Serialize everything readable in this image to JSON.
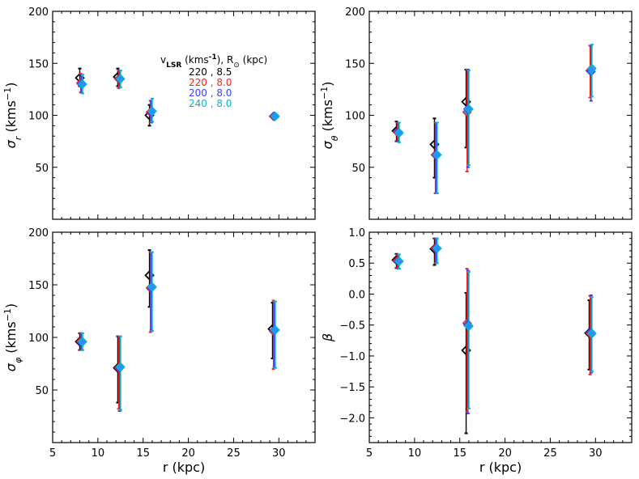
{
  "figure": {
    "legend": {
      "title": "v_LSR (kms^-1), R_sun (kpc)",
      "entries": [
        {
          "text": "220  ,  8.5",
          "color": "#000000"
        },
        {
          "text": "220  ,  8.0",
          "color": "#ff2020"
        },
        {
          "text": "200  ,  8.0",
          "color": "#3b3bff"
        },
        {
          "text": "240  ,  8.0",
          "color": "#00b8c8"
        }
      ]
    },
    "series_colors": {
      "black": "#000000",
      "red": "#ff2020",
      "blue": "#3b3bff",
      "cyan": "#00b8c8",
      "marker_fill": "#2f8fff"
    }
  },
  "chart_data": [
    {
      "type": "scatter",
      "panel": "top-left",
      "ylabel": "σr (kms^-1)",
      "xlabel": "",
      "xlim": [
        5,
        34
      ],
      "ylim": [
        0,
        200
      ],
      "xticks": [
        5,
        10,
        15,
        20,
        25,
        30
      ],
      "yticks": [
        50,
        100,
        150,
        200
      ],
      "show_xtick_labels": false,
      "series": [
        {
          "name": "220, 8.5",
          "color": "#000000",
          "points": [
            {
              "x": 8.0,
              "y": 136,
              "lo": 128,
              "hi": 145
            },
            {
              "x": 12.2,
              "y": 137,
              "lo": 128,
              "hi": 145
            },
            {
              "x": 15.7,
              "y": 100,
              "lo": 90,
              "hi": 110
            }
          ]
        },
        {
          "name": "220, 8.0",
          "color": "#ff2020",
          "points": [
            {
              "x": 8.0,
              "y": 131,
              "lo": 122,
              "hi": 140
            },
            {
              "x": 12.2,
              "y": 135,
              "lo": 126,
              "hi": 143
            },
            {
              "x": 15.7,
              "y": 103,
              "lo": 93,
              "hi": 114
            },
            {
              "x": 29.3,
              "y": 99,
              "lo": 97,
              "hi": 101
            }
          ]
        },
        {
          "name": "200, 8.0",
          "color": "#3b3bff",
          "points": [
            {
              "x": 8.0,
              "y": 130,
              "lo": 122,
              "hi": 139
            },
            {
              "x": 12.2,
              "y": 135,
              "lo": 127,
              "hi": 143
            },
            {
              "x": 15.7,
              "y": 103,
              "lo": 93,
              "hi": 114
            },
            {
              "x": 29.3,
              "y": 99,
              "lo": 97,
              "hi": 101
            }
          ]
        },
        {
          "name": "240, 8.0",
          "color": "#00b8c8",
          "points": [
            {
              "x": 8.0,
              "y": 130,
              "lo": 121,
              "hi": 139
            },
            {
              "x": 12.2,
              "y": 135,
              "lo": 127,
              "hi": 143
            },
            {
              "x": 15.7,
              "y": 104,
              "lo": 94,
              "hi": 116
            },
            {
              "x": 29.3,
              "y": 99,
              "lo": 97,
              "hi": 101
            }
          ]
        }
      ]
    },
    {
      "type": "scatter",
      "panel": "top-right",
      "ylabel": "σθ (kms^-1)",
      "xlabel": "",
      "xlim": [
        5,
        34
      ],
      "ylim": [
        0,
        200
      ],
      "xticks": [
        5,
        10,
        15,
        20,
        25,
        30
      ],
      "yticks": [
        50,
        100,
        150,
        200
      ],
      "show_xtick_labels": false,
      "series": [
        {
          "name": "220, 8.5",
          "color": "#000000",
          "points": [
            {
              "x": 8.0,
              "y": 85,
              "lo": 75,
              "hi": 94
            },
            {
              "x": 12.2,
              "y": 72,
              "lo": 40,
              "hi": 97
            },
            {
              "x": 15.7,
              "y": 113,
              "lo": 69,
              "hi": 144
            }
          ]
        },
        {
          "name": "220, 8.0",
          "color": "#ff2020",
          "points": [
            {
              "x": 8.0,
              "y": 84,
              "lo": 75,
              "hi": 93
            },
            {
              "x": 12.2,
              "y": 62,
              "lo": 25,
              "hi": 93
            },
            {
              "x": 15.7,
              "y": 103,
              "lo": 46,
              "hi": 144
            },
            {
              "x": 29.3,
              "y": 143,
              "lo": 117,
              "hi": 167
            }
          ]
        },
        {
          "name": "200, 8.0",
          "color": "#3b3bff",
          "points": [
            {
              "x": 8.0,
              "y": 84,
              "lo": 75,
              "hi": 93
            },
            {
              "x": 12.2,
              "y": 62,
              "lo": 25,
              "hi": 93
            },
            {
              "x": 15.7,
              "y": 106,
              "lo": 50,
              "hi": 144
            },
            {
              "x": 29.3,
              "y": 142,
              "lo": 114,
              "hi": 167
            }
          ]
        },
        {
          "name": "240, 8.0",
          "color": "#00b8c8",
          "points": [
            {
              "x": 8.0,
              "y": 83,
              "lo": 74,
              "hi": 93
            },
            {
              "x": 12.2,
              "y": 62,
              "lo": 25,
              "hi": 93
            },
            {
              "x": 15.7,
              "y": 106,
              "lo": 52,
              "hi": 143
            },
            {
              "x": 29.3,
              "y": 145,
              "lo": 118,
              "hi": 168
            }
          ]
        }
      ]
    },
    {
      "type": "scatter",
      "panel": "bottom-left",
      "ylabel": "σφ (kms^-1)",
      "xlabel": "r (kpc)",
      "xlim": [
        5,
        34
      ],
      "ylim": [
        0,
        200
      ],
      "xticks": [
        5,
        10,
        15,
        20,
        25,
        30
      ],
      "yticks": [
        50,
        100,
        150,
        200
      ],
      "show_xtick_labels": true,
      "series": [
        {
          "name": "220, 8.5",
          "color": "#000000",
          "points": [
            {
              "x": 8.0,
              "y": 96,
              "lo": 88,
              "hi": 104
            },
            {
              "x": 12.2,
              "y": 71,
              "lo": 38,
              "hi": 101
            },
            {
              "x": 15.7,
              "y": 159,
              "lo": 129,
              "hi": 183
            },
            {
              "x": 29.3,
              "y": 108,
              "lo": 80,
              "hi": 133
            }
          ]
        },
        {
          "name": "220, 8.0",
          "color": "#ff2020",
          "points": [
            {
              "x": 8.0,
              "y": 96,
              "lo": 88,
              "hi": 104
            },
            {
              "x": 12.2,
              "y": 71,
              "lo": 32,
              "hi": 101
            },
            {
              "x": 15.7,
              "y": 147,
              "lo": 105,
              "hi": 181
            },
            {
              "x": 29.3,
              "y": 106,
              "lo": 70,
              "hi": 135
            }
          ]
        },
        {
          "name": "200, 8.0",
          "color": "#3b3bff",
          "points": [
            {
              "x": 8.0,
              "y": 95,
              "lo": 88,
              "hi": 104
            },
            {
              "x": 12.2,
              "y": 71,
              "lo": 30,
              "hi": 101
            },
            {
              "x": 15.7,
              "y": 147,
              "lo": 107,
              "hi": 181
            },
            {
              "x": 29.3,
              "y": 107,
              "lo": 72,
              "hi": 134
            }
          ]
        },
        {
          "name": "240, 8.0",
          "color": "#00b8c8",
          "points": [
            {
              "x": 8.0,
              "y": 96,
              "lo": 88,
              "hi": 104
            },
            {
              "x": 12.2,
              "y": 72,
              "lo": 31,
              "hi": 101
            },
            {
              "x": 15.7,
              "y": 148,
              "lo": 106,
              "hi": 181
            },
            {
              "x": 29.3,
              "y": 107,
              "lo": 71,
              "hi": 134
            }
          ]
        }
      ]
    },
    {
      "type": "scatter",
      "panel": "bottom-right",
      "ylabel": "β",
      "xlabel": "r (kpc)",
      "xlim": [
        5,
        34
      ],
      "ylim": [
        -2.4,
        1.0
      ],
      "xticks": [
        5,
        10,
        15,
        20,
        25,
        30
      ],
      "yticks": [
        -2.0,
        -1.5,
        -1.0,
        -0.5,
        0.0,
        0.5,
        1.0
      ],
      "ytick_labels": [
        "−2.0",
        "−1.5",
        "−1.0",
        "−0.5",
        "0.0",
        "0.5",
        "1.0"
      ],
      "show_xtick_labels": true,
      "series": [
        {
          "name": "220, 8.5",
          "color": "#000000",
          "points": [
            {
              "x": 8.0,
              "y": 0.55,
              "lo": 0.42,
              "hi": 0.65
            },
            {
              "x": 12.2,
              "y": 0.73,
              "lo": 0.47,
              "hi": 0.9
            },
            {
              "x": 15.7,
              "y": -0.91,
              "lo": -2.25,
              "hi": 0.02
            },
            {
              "x": 29.3,
              "y": -0.63,
              "lo": -1.22,
              "hi": -0.1
            }
          ]
        },
        {
          "name": "220, 8.0",
          "color": "#ff2020",
          "points": [
            {
              "x": 8.0,
              "y": 0.54,
              "lo": 0.42,
              "hi": 0.64
            },
            {
              "x": 12.2,
              "y": 0.74,
              "lo": 0.5,
              "hi": 0.9
            },
            {
              "x": 15.7,
              "y": -0.47,
              "lo": -1.9,
              "hi": 0.41
            },
            {
              "x": 29.3,
              "y": -0.63,
              "lo": -1.3,
              "hi": -0.03
            }
          ]
        },
        {
          "name": "200, 8.0",
          "color": "#3b3bff",
          "points": [
            {
              "x": 8.0,
              "y": 0.53,
              "lo": 0.41,
              "hi": 0.64
            },
            {
              "x": 12.2,
              "y": 0.74,
              "lo": 0.5,
              "hi": 0.9
            },
            {
              "x": 15.7,
              "y": -0.5,
              "lo": -1.93,
              "hi": 0.38
            },
            {
              "x": 29.3,
              "y": -0.62,
              "lo": -1.27,
              "hi": -0.02
            }
          ]
        },
        {
          "name": "240, 8.0",
          "color": "#00b8c8",
          "points": [
            {
              "x": 8.0,
              "y": 0.53,
              "lo": 0.41,
              "hi": 0.64
            },
            {
              "x": 12.2,
              "y": 0.74,
              "lo": 0.5,
              "hi": 0.9
            },
            {
              "x": 15.7,
              "y": -0.52,
              "lo": -1.85,
              "hi": 0.36
            },
            {
              "x": 29.3,
              "y": -0.64,
              "lo": -1.25,
              "hi": -0.05
            }
          ]
        }
      ]
    }
  ]
}
